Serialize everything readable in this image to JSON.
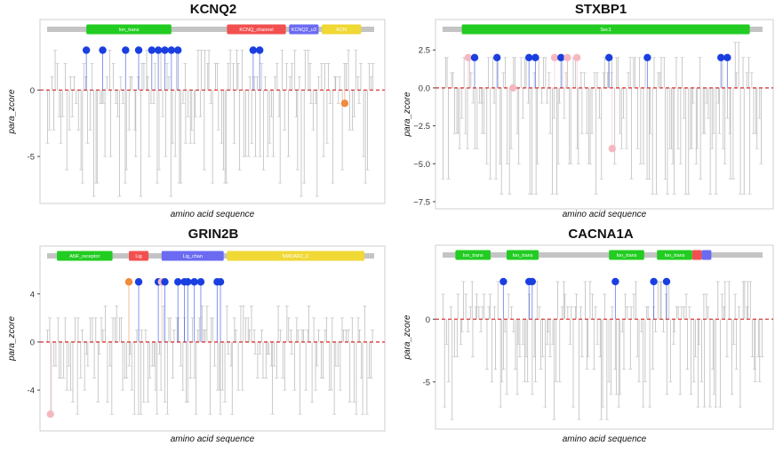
{
  "chart_data": [
    {
      "type": "scatter",
      "title": "KCNQ2",
      "xlabel": "amino acid sequence",
      "ylabel": "para_zcore",
      "ylim": [
        -8,
        3.7
      ],
      "yticks": [
        {
          "value": 0,
          "label": "0"
        },
        {
          "value": -5,
          "label": "-5"
        }
      ],
      "threshold": 0,
      "seq_length": 100,
      "domains": [
        {
          "name": "Ion_trans",
          "start": 12,
          "end": 38,
          "color": "#22cc22"
        },
        {
          "name": "KCNQ_channel",
          "start": 55,
          "end": 73,
          "color": "#f25050"
        },
        {
          "name": "KCNQ2_u3",
          "start": 74,
          "end": 83,
          "color": "#6b6bf2"
        },
        {
          "name": "KCN",
          "start": 84,
          "end": 96,
          "color": "#f0d835"
        }
      ],
      "points": [
        {
          "x": 12,
          "y": 3,
          "color": "#1a3fe0"
        },
        {
          "x": 17,
          "y": 3,
          "color": "#1a3fe0"
        },
        {
          "x": 24,
          "y": 3,
          "color": "#1a3fe0"
        },
        {
          "x": 28,
          "y": 3,
          "color": "#1a3fe0"
        },
        {
          "x": 32,
          "y": 3,
          "color": "#1a3fe0"
        },
        {
          "x": 34,
          "y": 3,
          "color": "#1a3fe0"
        },
        {
          "x": 36,
          "y": 3,
          "color": "#1a3fe0"
        },
        {
          "x": 38,
          "y": 3,
          "color": "#1a3fe0"
        },
        {
          "x": 40,
          "y": 3,
          "color": "#1a3fe0"
        },
        {
          "x": 63,
          "y": 3,
          "color": "#1a3fe0"
        },
        {
          "x": 65,
          "y": 3,
          "color": "#1a3fe0"
        },
        {
          "x": 91,
          "y": -1,
          "color": "#f08a3c"
        }
      ]
    },
    {
      "type": "scatter",
      "title": "STXBP1",
      "xlabel": "amino acid sequence",
      "ylabel": "para_zcore",
      "ylim": [
        -7.5,
        3.1
      ],
      "yticks": [
        {
          "value": 2.5,
          "label": "2.5"
        },
        {
          "value": 0,
          "label": "0.0"
        },
        {
          "value": -2.5,
          "label": "−2.5"
        },
        {
          "value": -5,
          "label": "−5.0"
        },
        {
          "value": -7.5,
          "label": "−7.5"
        }
      ],
      "threshold": 0,
      "seq_length": 100,
      "domains": [
        {
          "name": "Sec1",
          "start": 6,
          "end": 96,
          "color": "#22cc22"
        }
      ],
      "points": [
        {
          "x": 8,
          "y": 2,
          "color": "#f6b8c0"
        },
        {
          "x": 10,
          "y": 2,
          "color": "#1a3fe0"
        },
        {
          "x": 17,
          "y": 2,
          "color": "#1a3fe0"
        },
        {
          "x": 22,
          "y": 0,
          "color": "#f6b8c0"
        },
        {
          "x": 27,
          "y": 2,
          "color": "#1a3fe0"
        },
        {
          "x": 29,
          "y": 2,
          "color": "#1a3fe0"
        },
        {
          "x": 35,
          "y": 2,
          "color": "#f6b8c0"
        },
        {
          "x": 37,
          "y": 2,
          "color": "#1a3fe0"
        },
        {
          "x": 39,
          "y": 2,
          "color": "#f6b8c0"
        },
        {
          "x": 42,
          "y": 2,
          "color": "#f6b8c0"
        },
        {
          "x": 52,
          "y": 2,
          "color": "#1a3fe0"
        },
        {
          "x": 53,
          "y": -4,
          "color": "#f6b8c0"
        },
        {
          "x": 64,
          "y": 2,
          "color": "#1a3fe0"
        },
        {
          "x": 87,
          "y": 2,
          "color": "#1a3fe0"
        },
        {
          "x": 89,
          "y": 2,
          "color": "#1a3fe0"
        }
      ]
    },
    {
      "type": "scatter",
      "title": "GRIN2B",
      "xlabel": "amino acid sequence",
      "ylabel": "para_zcore",
      "ylim": [
        -6.8,
        6.2
      ],
      "yticks": [
        {
          "value": 4,
          "label": "4"
        },
        {
          "value": 0,
          "label": "0"
        },
        {
          "value": -4,
          "label": "-4"
        }
      ],
      "threshold": 0,
      "seq_length": 100,
      "domains": [
        {
          "name": "ANF_receptor",
          "start": 3,
          "end": 20,
          "color": "#22cc22"
        },
        {
          "name": "Lig",
          "start": 25,
          "end": 31,
          "color": "#f25050"
        },
        {
          "name": "Lig_chan",
          "start": 35,
          "end": 54,
          "color": "#6b6bf2"
        },
        {
          "name": "NMDAR2_C",
          "start": 55,
          "end": 97,
          "color": "#f0d835"
        }
      ],
      "points": [
        {
          "x": 1,
          "y": -6,
          "color": "#f6b8c0"
        },
        {
          "x": 25,
          "y": 5,
          "color": "#f08a3c"
        },
        {
          "x": 28,
          "y": 5,
          "color": "#1a3fe0"
        },
        {
          "x": 34,
          "y": 5,
          "color": "#1a3fe0"
        },
        {
          "x": 35,
          "y": 5,
          "color": "#f6b8c0"
        },
        {
          "x": 36,
          "y": 5,
          "color": "#1a3fe0"
        },
        {
          "x": 40,
          "y": 5,
          "color": "#1a3fe0"
        },
        {
          "x": 42,
          "y": 5,
          "color": "#1a3fe0"
        },
        {
          "x": 43,
          "y": 5,
          "color": "#1a3fe0"
        },
        {
          "x": 45,
          "y": 5,
          "color": "#1a3fe0"
        },
        {
          "x": 47,
          "y": 5,
          "color": "#1a3fe0"
        },
        {
          "x": 52,
          "y": 5,
          "color": "#1a3fe0"
        },
        {
          "x": 53,
          "y": 5,
          "color": "#1a3fe0"
        }
      ]
    },
    {
      "type": "scatter",
      "title": "CACNA1A",
      "xlabel": "amino acid sequence",
      "ylabel": "para_zcore",
      "ylim": [
        -8.2,
        4.2
      ],
      "yticks": [
        {
          "value": 0,
          "label": "0"
        },
        {
          "value": -5,
          "label": "-5"
        }
      ],
      "threshold": 0,
      "seq_length": 100,
      "domains": [
        {
          "name": "Ion_trans",
          "start": 4,
          "end": 15,
          "color": "#22cc22"
        },
        {
          "name": "Ion_trans",
          "start": 20,
          "end": 30,
          "color": "#22cc22"
        },
        {
          "name": "Ion_trans",
          "start": 52,
          "end": 63,
          "color": "#22cc22"
        },
        {
          "name": "Ion_trans",
          "start": 67,
          "end": 78,
          "color": "#22cc22"
        },
        {
          "name": "",
          "start": 78,
          "end": 81,
          "color": "#f25050"
        },
        {
          "name": "",
          "start": 81,
          "end": 84,
          "color": "#6b6bf2"
        }
      ],
      "points": [
        {
          "x": 19,
          "y": 3,
          "color": "#1a3fe0"
        },
        {
          "x": 27,
          "y": 3,
          "color": "#1a3fe0"
        },
        {
          "x": 28,
          "y": 3,
          "color": "#1a3fe0"
        },
        {
          "x": 54,
          "y": 3,
          "color": "#1a3fe0"
        },
        {
          "x": 66,
          "y": 3,
          "color": "#1a3fe0"
        },
        {
          "x": 70,
          "y": 3,
          "color": "#1a3fe0"
        }
      ]
    }
  ]
}
